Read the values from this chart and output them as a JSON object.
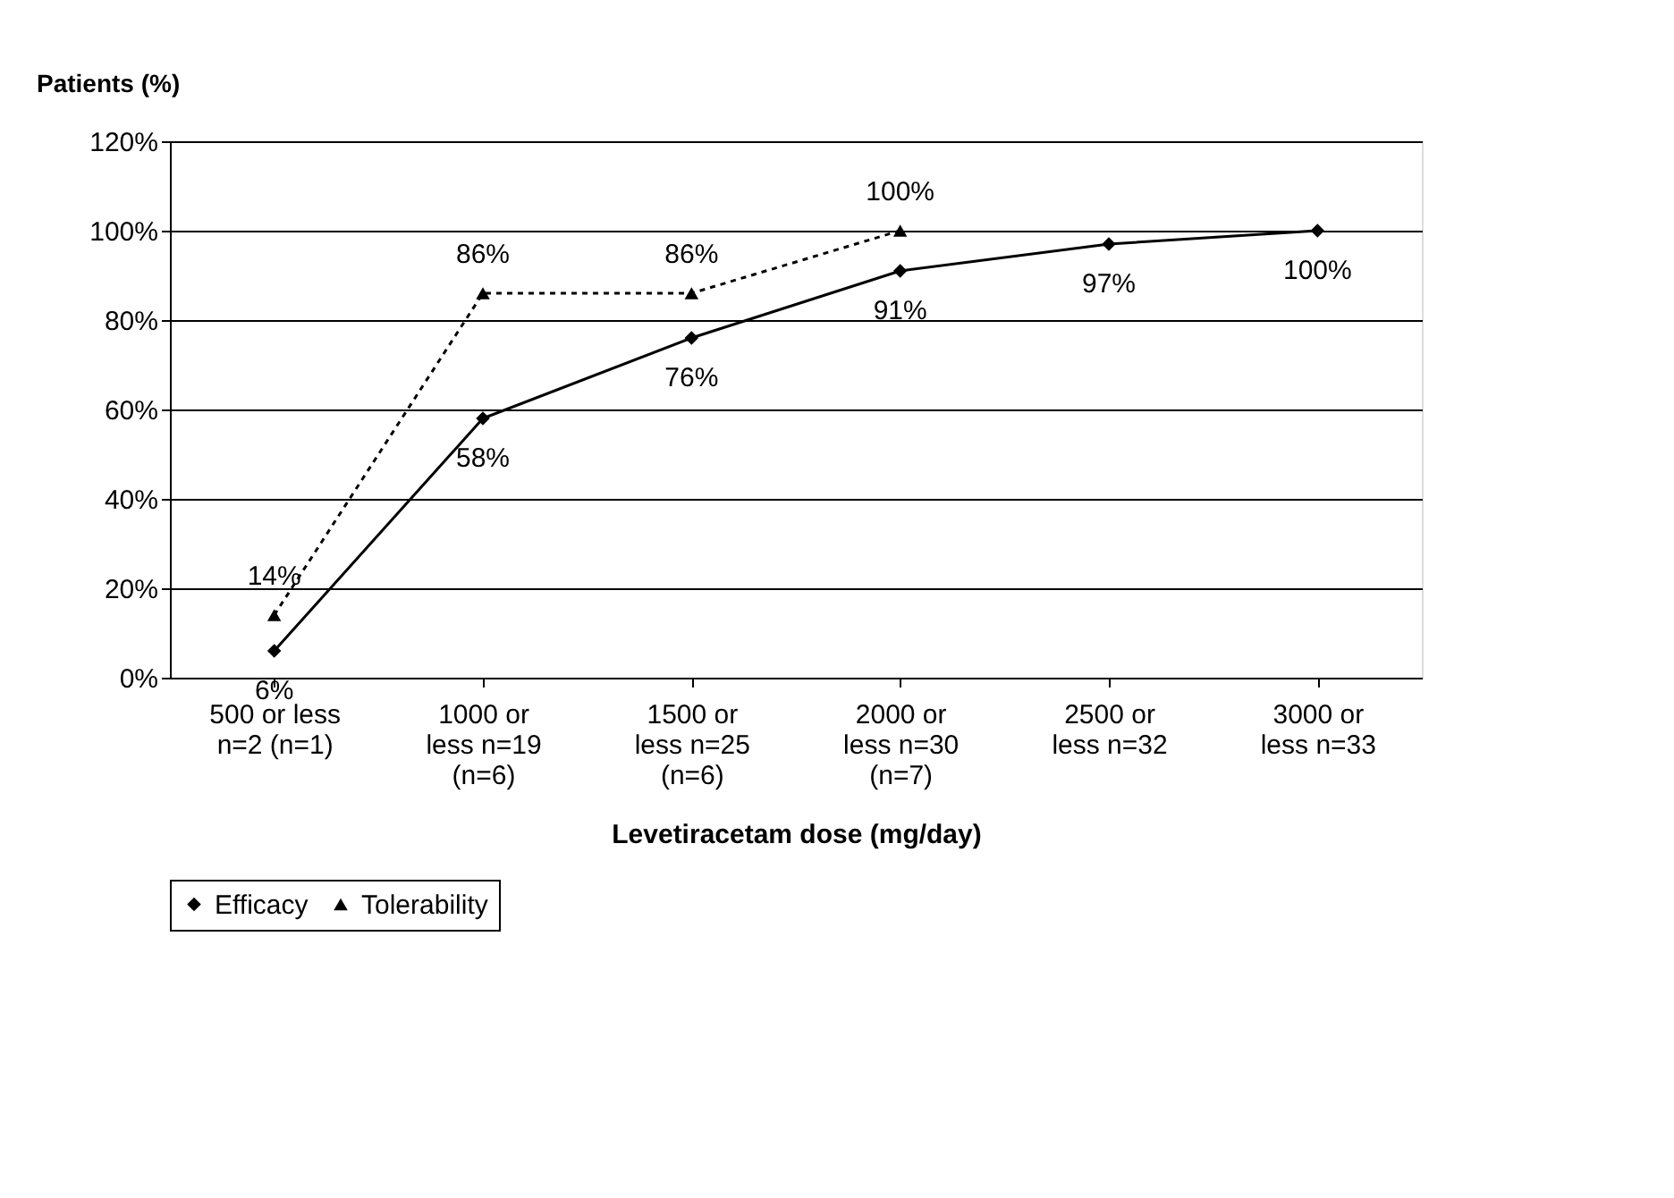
{
  "chart_data": {
    "type": "line",
    "xlabel": "Levetiracetam dose (mg/day)",
    "ylabel": "Patients (%)",
    "categories": [
      "500 or less\nn=2 (n=1)",
      "1000 or\nless n=19\n(n=6)",
      "1500 or\nless n=25\n(n=6)",
      "2000 or\nless n=30\n(n=7)",
      "2500 or\nless n=32",
      "3000 or\nless n=33"
    ],
    "series": [
      {
        "name": "Efficacy",
        "color": "#000000",
        "marker": "diamond",
        "line_style": "solid",
        "values": [
          6,
          58,
          76,
          91,
          97,
          100
        ],
        "value_labels": [
          "6%",
          "58%",
          "76%",
          "91%",
          "97%",
          "100%"
        ]
      },
      {
        "name": "Tolerability",
        "color": "#000000",
        "marker": "triangle",
        "line_style": "dashed",
        "values": [
          14,
          86,
          86,
          100,
          null,
          null
        ],
        "value_labels": [
          "14%",
          "86%",
          "86%",
          "100%",
          null,
          null
        ]
      }
    ],
    "ylim": [
      0,
      120
    ],
    "yticks": [
      {
        "value": 0,
        "label": "0%"
      },
      {
        "value": 20,
        "label": "20%"
      },
      {
        "value": 40,
        "label": "40%"
      },
      {
        "value": 60,
        "label": "60%"
      },
      {
        "value": 80,
        "label": "80%"
      },
      {
        "value": 100,
        "label": "100%"
      },
      {
        "value": 120,
        "label": "120%"
      }
    ],
    "grid": "y",
    "legend": "bottom"
  }
}
